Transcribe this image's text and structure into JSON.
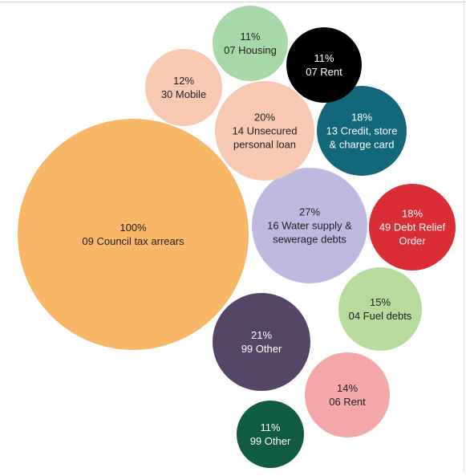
{
  "chart_data": {
    "type": "bubble",
    "title": "",
    "bubbles": [
      {
        "code": "09",
        "category": "Council tax arrears",
        "percent": 100,
        "pct_label": "100%",
        "lines": [
          "09 Council tax arrears"
        ],
        "color": "#F9B768",
        "text_color": "#222222"
      },
      {
        "code": "16",
        "category": "Water supply & sewerage debts",
        "percent": 27,
        "pct_label": "27%",
        "lines": [
          "16 Water supply &",
          "sewerage debts"
        ],
        "color": "#BDB9E1",
        "text_color": "#222222"
      },
      {
        "code": "99",
        "category": "Other",
        "percent": 21,
        "pct_label": "21%",
        "lines": [
          "99 Other"
        ],
        "color": "#544667",
        "text_color": "#ffffff"
      },
      {
        "code": "14",
        "category": "Unsecured personal loan",
        "percent": 20,
        "pct_label": "20%",
        "lines": [
          "14 Unsecured",
          "personal loan"
        ],
        "color": "#F8C8B1",
        "text_color": "#222222"
      },
      {
        "code": "13",
        "category": "Credit, store & charge card",
        "percent": 18,
        "pct_label": "18%",
        "lines": [
          "13 Credit, store",
          "& charge card"
        ],
        "color": "#13677A",
        "text_color": "#ffffff"
      },
      {
        "code": "49",
        "category": "Debt Relief Order",
        "percent": 18,
        "pct_label": "18%",
        "lines": [
          "49 Debt Relief",
          "Order"
        ],
        "color": "#DA2D35",
        "text_color": "#ffffff"
      },
      {
        "code": "04",
        "category": "Fuel debts",
        "percent": 15,
        "pct_label": "15%",
        "lines": [
          "04 Fuel debts"
        ],
        "color": "#B6DB9A",
        "text_color": "#222222"
      },
      {
        "code": "06",
        "category": "Rent",
        "percent": 14,
        "pct_label": "14%",
        "lines": [
          "06 Rent"
        ],
        "color": "#F4A8A9",
        "text_color": "#222222"
      },
      {
        "code": "30",
        "category": "Mobile",
        "percent": 12,
        "pct_label": "12%",
        "lines": [
          "30 Mobile"
        ],
        "color": "#F8C8B1",
        "text_color": "#222222"
      },
      {
        "code": "07",
        "category": "Housing",
        "percent": 11,
        "pct_label": "11%",
        "lines": [
          "07 Housing"
        ],
        "color": "#A6D8A8",
        "text_color": "#222222"
      },
      {
        "code": "07",
        "category": "Rent",
        "percent": 11,
        "pct_label": "11%",
        "lines": [
          "07 Rent"
        ],
        "color": "#000000",
        "text_color": "#ffffff"
      },
      {
        "code": "99",
        "category": "Other",
        "percent": 11,
        "pct_label": "11%",
        "lines": [
          "99 Other"
        ],
        "color": "#0F5B43",
        "text_color": "#ffffff"
      }
    ]
  }
}
